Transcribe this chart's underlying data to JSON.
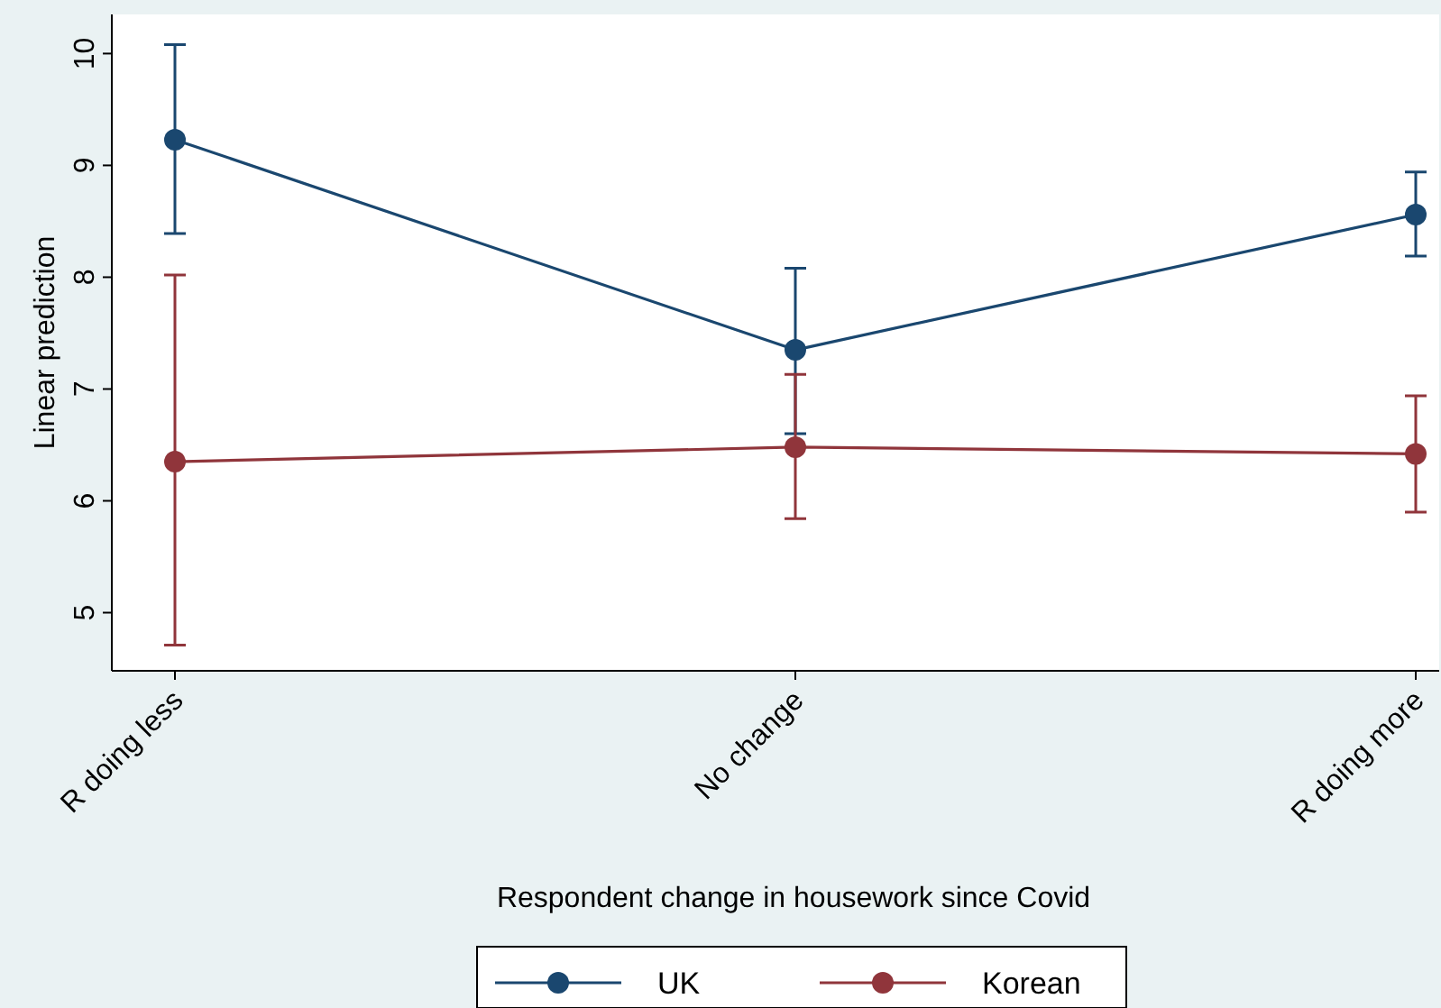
{
  "chart_data": {
    "type": "line",
    "xlabel": "Respondent change in housework since Covid",
    "ylabel": "Linear prediction",
    "categories": [
      "R doing less",
      "No change",
      "R doing more"
    ],
    "series": [
      {
        "name": "UK",
        "color": "#1a476f",
        "values": [
          9.23,
          7.35,
          8.56
        ],
        "errors": [
          [
            8.39,
            10.08
          ],
          [
            6.6,
            8.08
          ],
          [
            8.19,
            8.94
          ]
        ]
      },
      {
        "name": "Korean",
        "color": "#90353b",
        "values": [
          6.35,
          6.48,
          6.42
        ],
        "errors": [
          [
            4.71,
            8.02
          ],
          [
            5.84,
            7.13
          ],
          [
            5.9,
            6.94
          ]
        ]
      }
    ],
    "ylim": [
      4.48,
      10.35
    ],
    "yticks": [
      5,
      6,
      7,
      8,
      9,
      10
    ],
    "marker": "circle",
    "line_style": "solid",
    "grid": false,
    "legend": "bottom"
  }
}
